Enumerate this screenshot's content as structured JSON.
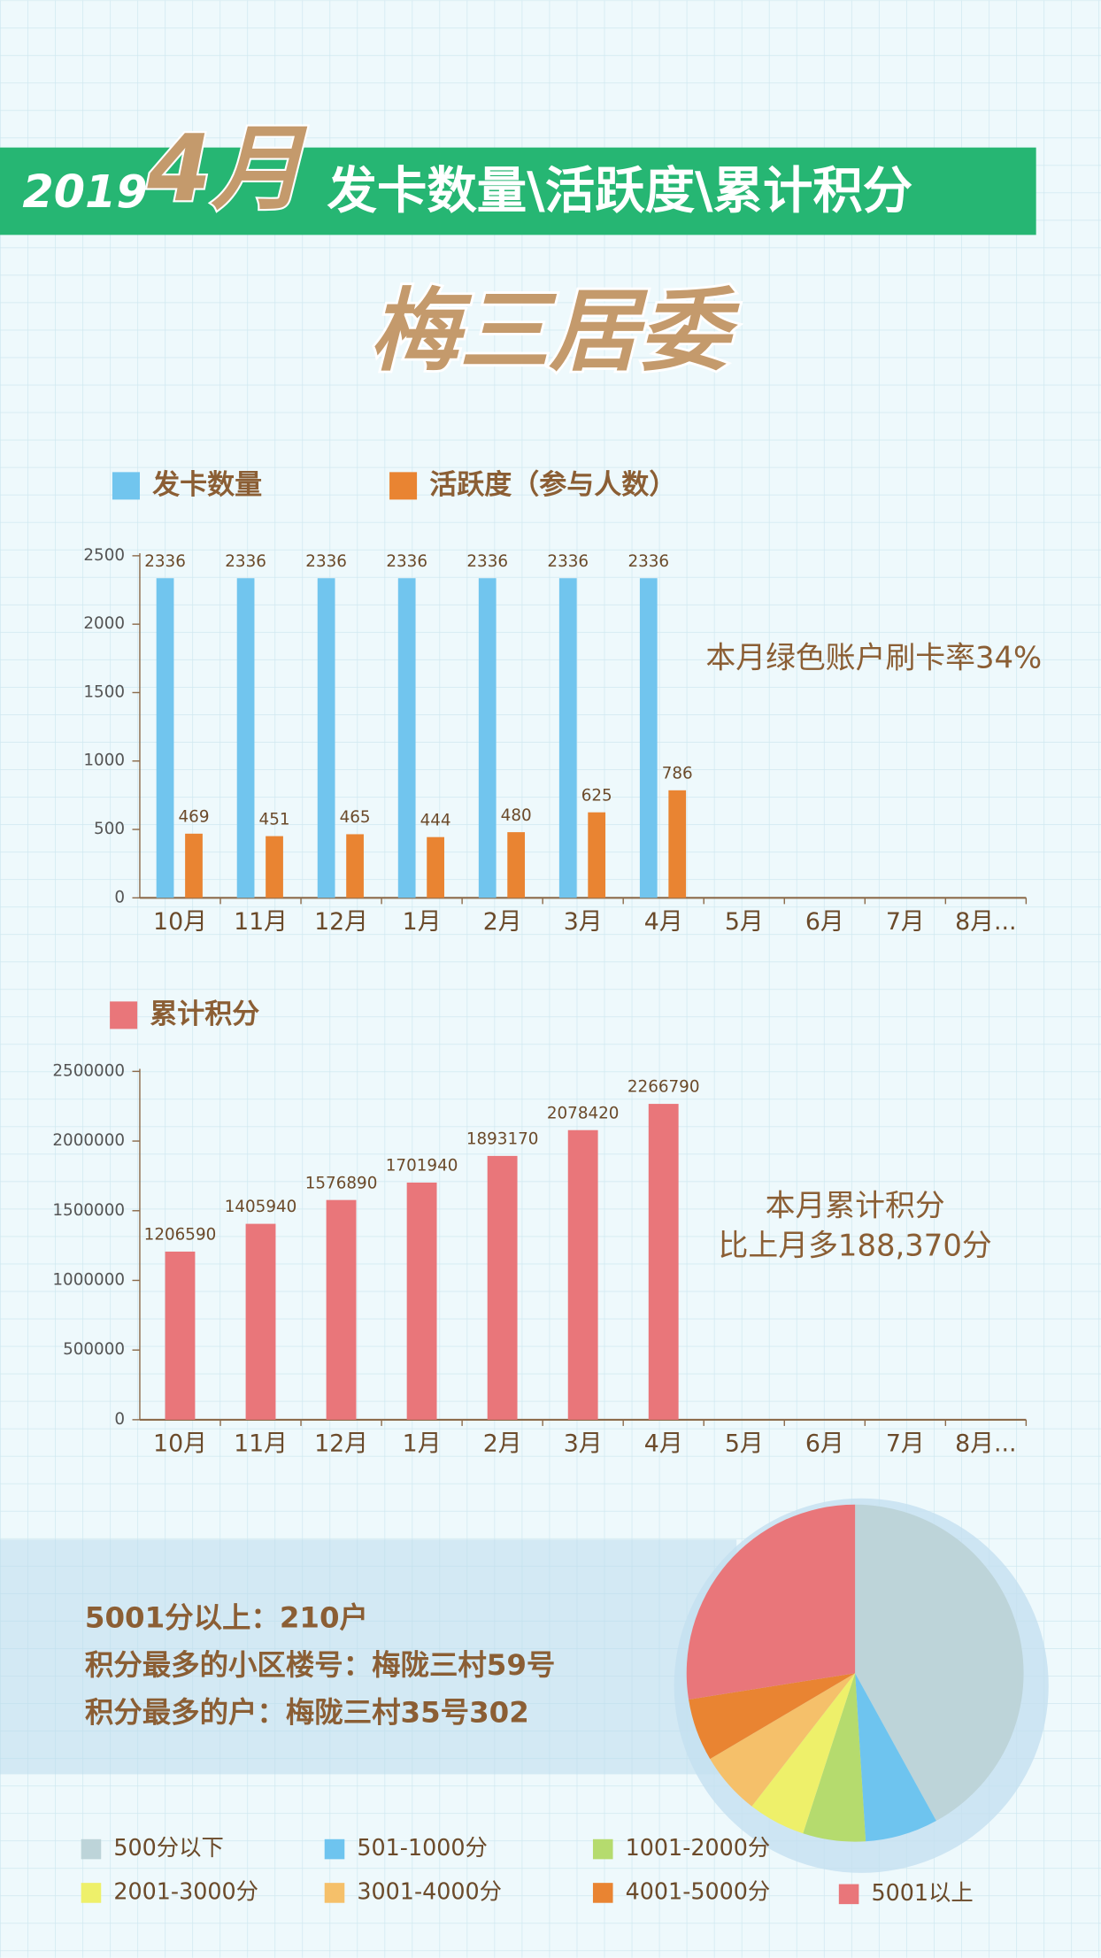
{
  "header": {
    "year": "2019",
    "month": "4月",
    "title": "发卡数量\\活跃度\\累计积分",
    "subtitle": "梅三居委"
  },
  "info": [
    "5001分以上：210户",
    "积分最多的小区楼号：梅陇三村59号",
    "积分最多的户：梅陇三村35号302"
  ],
  "chart_data": [
    {
      "type": "bar",
      "categories": [
        "10月",
        "11月",
        "12月",
        "1月",
        "2月",
        "3月",
        "4月",
        "5月",
        "6月",
        "7月",
        "8月..."
      ],
      "series": [
        {
          "name": "发卡数量",
          "color": "#71c5ee",
          "values": [
            2336,
            2336,
            2336,
            2336,
            2336,
            2336,
            2336,
            null,
            null,
            null,
            null
          ]
        },
        {
          "name": "活跃度（参与人数）",
          "color": "#e98432",
          "values": [
            469,
            451,
            465,
            444,
            480,
            625,
            786,
            null,
            null,
            null,
            null
          ]
        }
      ],
      "ylim": [
        0,
        2500
      ],
      "yticks": [
        0,
        500,
        1000,
        1500,
        2000,
        2500
      ],
      "annotations": [
        "本月绿色账户刷卡率34%"
      ]
    },
    {
      "type": "bar",
      "categories": [
        "10月",
        "11月",
        "12月",
        "1月",
        "2月",
        "3月",
        "4月",
        "5月",
        "6月",
        "7月",
        "8月..."
      ],
      "series": [
        {
          "name": "累计积分",
          "color": "#e9767a",
          "values": [
            1206590,
            1405940,
            1576890,
            1701940,
            1893170,
            2078420,
            2266790,
            null,
            null,
            null,
            null
          ]
        }
      ],
      "ylim": [
        0,
        2500000
      ],
      "yticks": [
        0,
        500000,
        1000000,
        1500000,
        2000000,
        2500000
      ],
      "annotations": [
        "本月累计积分",
        "比上月多188,370分"
      ]
    },
    {
      "type": "pie",
      "categories": [
        "500分以下",
        "501-1000分",
        "1001-2000分",
        "2001-3000分",
        "3001-4000分",
        "4001-5000分",
        "5001以上"
      ],
      "values": [
        42,
        7,
        6,
        5.5,
        6,
        6,
        27.5
      ],
      "colors": [
        "#bdd4d9",
        "#6ec4ef",
        "#b5db6e",
        "#eef06a",
        "#f5c06a",
        "#e98432",
        "#e9767a"
      ]
    }
  ]
}
